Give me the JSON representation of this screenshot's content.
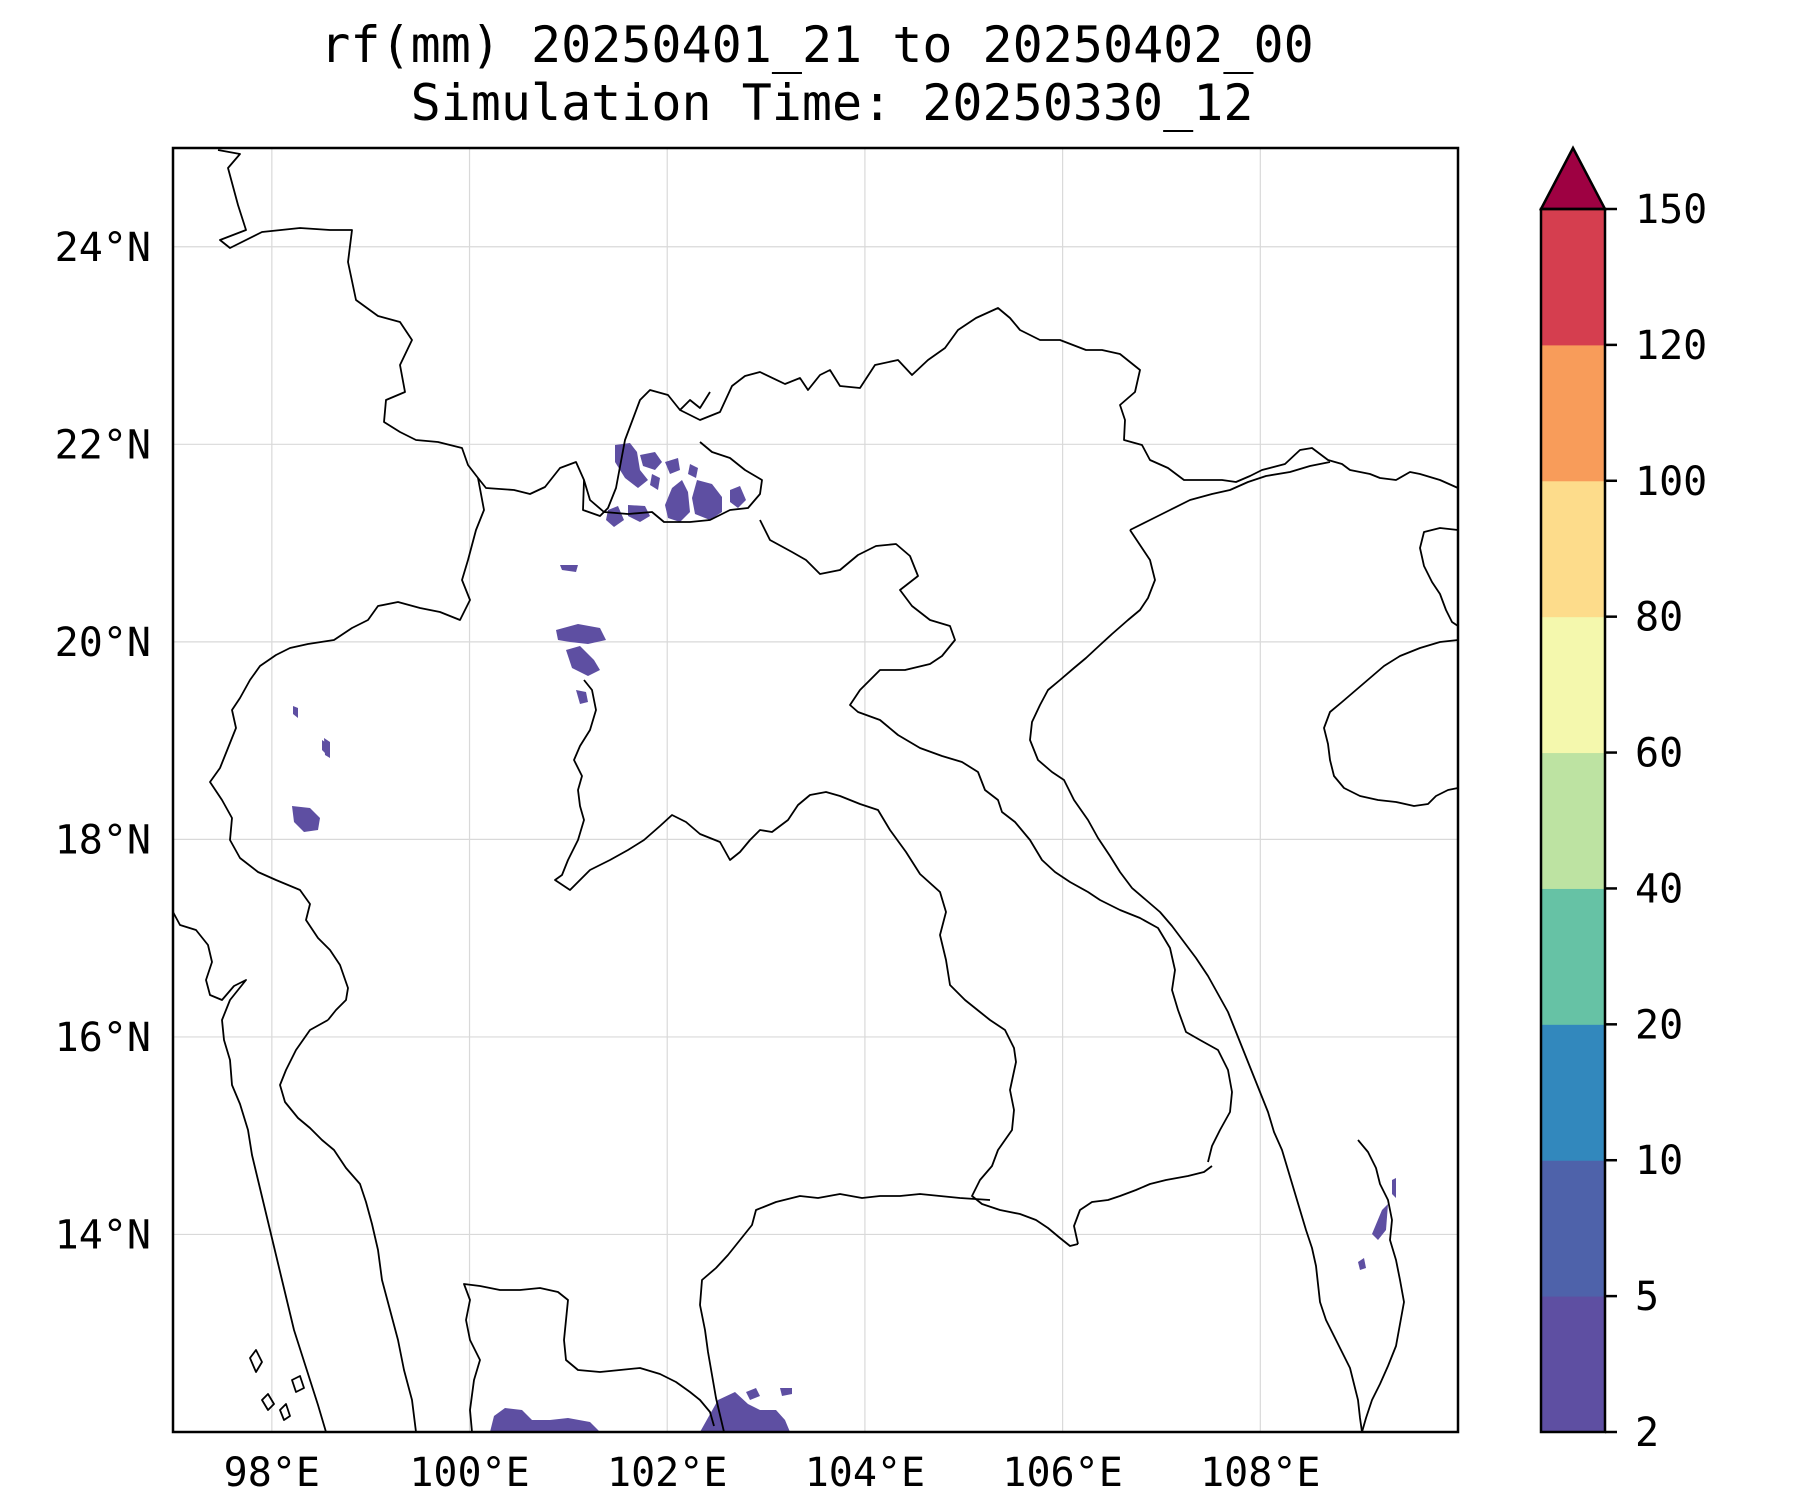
{
  "title": {
    "line1": "rf(mm) 20250401_21 to 20250402_00",
    "line2": "Simulation Time: 20250330_12"
  },
  "map": {
    "lon_range": [
      97,
      110
    ],
    "lat_range": [
      12,
      25
    ],
    "x_ticks": [
      {
        "value": 98,
        "label": "98°E"
      },
      {
        "value": 100,
        "label": "100°E"
      },
      {
        "value": 102,
        "label": "102°E"
      },
      {
        "value": 104,
        "label": "104°E"
      },
      {
        "value": 106,
        "label": "106°E"
      },
      {
        "value": 108,
        "label": "108°E"
      }
    ],
    "y_ticks": [
      {
        "value": 24,
        "label": "24°N"
      },
      {
        "value": 22,
        "label": "22°N"
      },
      {
        "value": 20,
        "label": "20°N"
      },
      {
        "value": 18,
        "label": "18°N"
      },
      {
        "value": 16,
        "label": "16°N"
      },
      {
        "value": 14,
        "label": "14°N"
      }
    ],
    "gridlines": true
  },
  "colorbar": {
    "extend": "max",
    "levels": [
      2,
      5,
      10,
      20,
      40,
      60,
      80,
      100,
      120,
      150
    ],
    "tick_labels": [
      "2",
      "5",
      "10",
      "20",
      "40",
      "60",
      "80",
      "100",
      "120",
      "150"
    ],
    "colors": [
      "#5e4fa2",
      "#4e62aa",
      "#3288bd",
      "#66c2a5",
      "#bde3a2",
      "#f4f8ad",
      "#fddc8b",
      "#f89c5a",
      "#d53e4f"
    ],
    "extend_color": "#9e0142"
  },
  "chart_data": {
    "type": "heatmap",
    "title": "rf(mm) 20250401_21 to 20250402_00\nSimulation Time: 20250330_12",
    "x_axis": "longitude",
    "y_axis": "latitude",
    "xlim": [
      97,
      110
    ],
    "ylim": [
      12,
      25
    ],
    "value_range_shown": "2–5 mm",
    "rain_cells": [
      {
        "region": "northern Laos / Vietnam border",
        "lon": [
          101.3,
          102.9
        ],
        "lat": [
          21.2,
          21.9
        ],
        "category": "2-5"
      },
      {
        "region": "northern Laos",
        "lon": [
          100.8,
          101.3
        ],
        "lat": [
          19.5,
          20.1
        ],
        "category": "2-5"
      },
      {
        "region": "northwestern Thailand",
        "lon": [
          98.2,
          98.5
        ],
        "lat": [
          18.1,
          18.3
        ],
        "category": "2-5"
      },
      {
        "region": "Gulf of Thailand / Cambodia coast",
        "lon": [
          100.2,
          103.2
        ],
        "lat": [
          12.0,
          12.4
        ],
        "category": "2-5"
      },
      {
        "region": "central Vietnam coast",
        "lon": [
          108.9,
          109.1
        ],
        "lat": [
          13.5,
          14.3
        ],
        "category": "2-5"
      }
    ]
  }
}
